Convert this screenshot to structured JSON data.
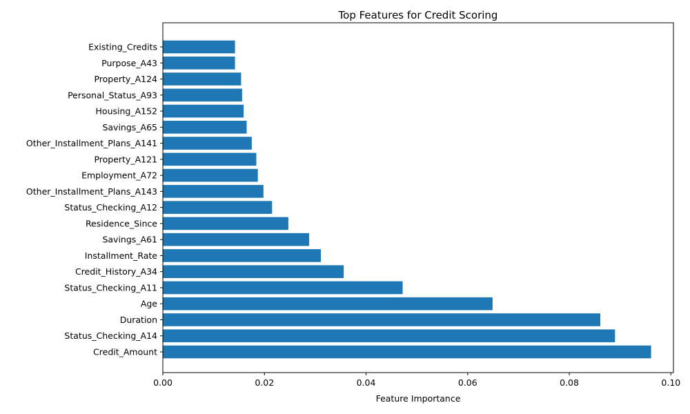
{
  "chart_data": {
    "type": "bar",
    "orientation": "horizontal",
    "title": "Top Features for Credit Scoring",
    "xlabel": "Feature Importance",
    "ylabel": "",
    "xlim": [
      0,
      0.1005
    ],
    "x_ticks": [
      0.0,
      0.02,
      0.04,
      0.06,
      0.08,
      0.1
    ],
    "x_tick_labels": [
      "0.00",
      "0.02",
      "0.04",
      "0.06",
      "0.08",
      "0.10"
    ],
    "grid": false,
    "bar_color": "#1f77b4",
    "categories": [
      "Credit_Amount",
      "Status_Checking_A14",
      "Duration",
      "Age",
      "Status_Checking_A11",
      "Credit_History_A34",
      "Installment_Rate",
      "Savings_A61",
      "Residence_Since",
      "Status_Checking_A12",
      "Other_Installment_Plans_A143",
      "Employment_A72",
      "Property_A121",
      "Other_Installment_Plans_A141",
      "Savings_A65",
      "Housing_A152",
      "Personal_Status_A93",
      "Property_A124",
      "Purpose_A43",
      "Existing_Credits"
    ],
    "values": [
      0.0961,
      0.089,
      0.0861,
      0.0649,
      0.0472,
      0.0356,
      0.0311,
      0.0288,
      0.0247,
      0.0215,
      0.0198,
      0.0187,
      0.0184,
      0.0175,
      0.0165,
      0.0159,
      0.0156,
      0.0154,
      0.0142,
      0.0142
    ]
  }
}
